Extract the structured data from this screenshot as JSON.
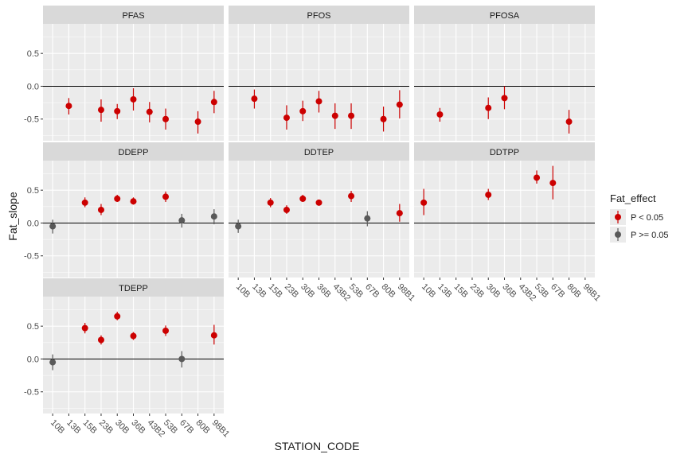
{
  "colors": {
    "panel_bg": "#ebebeb",
    "strip_bg": "#d9d9d9",
    "grid": "#ffffff",
    "sig": "#cc0000",
    "nonsig": "#595959",
    "text": "#4d4d4d",
    "title_text": "#1a1a1a",
    "zero_line": "#000000"
  },
  "chart_data": {
    "type": "scatter",
    "xlabel": "STATION_CODE",
    "ylabel": "Fat_slope",
    "ylim": [
      -0.83,
      0.95
    ],
    "yticks": [
      -0.5,
      0.0,
      0.5
    ],
    "ytick_labels": [
      "-0.5",
      "0.0",
      "0.5"
    ],
    "categories": [
      "10B",
      "13B",
      "15B",
      "23B",
      "30B",
      "36B",
      "43B2",
      "53B",
      "67B",
      "80B",
      "98B1"
    ],
    "legend": {
      "title": "Fat_effect",
      "position": "right",
      "entries": [
        {
          "label": "P < 0.05",
          "color": "#cc0000"
        },
        {
          "label": "P >= 0.05",
          "color": "#595959"
        }
      ]
    },
    "panels": [
      {
        "name": "PFAS",
        "points": [
          {
            "x": "13B",
            "y": -0.3,
            "lo": -0.43,
            "hi": -0.18,
            "sig": true
          },
          {
            "x": "23B",
            "y": -0.36,
            "lo": -0.54,
            "hi": -0.2,
            "sig": true
          },
          {
            "x": "30B",
            "y": -0.38,
            "lo": -0.5,
            "hi": -0.27,
            "sig": true
          },
          {
            "x": "36B",
            "y": -0.2,
            "lo": -0.37,
            "hi": -0.03,
            "sig": true
          },
          {
            "x": "43B2",
            "y": -0.39,
            "lo": -0.55,
            "hi": -0.24,
            "sig": true
          },
          {
            "x": "53B",
            "y": -0.5,
            "lo": -0.66,
            "hi": -0.34,
            "sig": true
          },
          {
            "x": "80B",
            "y": -0.54,
            "lo": -0.72,
            "hi": -0.38,
            "sig": true
          },
          {
            "x": "98B1",
            "y": -0.24,
            "lo": -0.41,
            "hi": -0.07,
            "sig": true
          }
        ]
      },
      {
        "name": "PFOS",
        "points": [
          {
            "x": "13B",
            "y": -0.19,
            "lo": -0.34,
            "hi": -0.05,
            "sig": true
          },
          {
            "x": "23B",
            "y": -0.48,
            "lo": -0.66,
            "hi": -0.29,
            "sig": true
          },
          {
            "x": "30B",
            "y": -0.38,
            "lo": -0.53,
            "hi": -0.22,
            "sig": true
          },
          {
            "x": "36B",
            "y": -0.23,
            "lo": -0.4,
            "hi": -0.07,
            "sig": true
          },
          {
            "x": "43B2",
            "y": -0.45,
            "lo": -0.65,
            "hi": -0.26,
            "sig": true
          },
          {
            "x": "53B",
            "y": -0.45,
            "lo": -0.65,
            "hi": -0.26,
            "sig": true
          },
          {
            "x": "80B",
            "y": -0.5,
            "lo": -0.69,
            "hi": -0.31,
            "sig": true
          },
          {
            "x": "98B1",
            "y": -0.28,
            "lo": -0.49,
            "hi": -0.06,
            "sig": true
          }
        ]
      },
      {
        "name": "PFOSA",
        "points": [
          {
            "x": "13B",
            "y": -0.43,
            "lo": -0.54,
            "hi": -0.33,
            "sig": true
          },
          {
            "x": "30B",
            "y": -0.33,
            "lo": -0.5,
            "hi": -0.17,
            "sig": true
          },
          {
            "x": "36B",
            "y": -0.18,
            "lo": -0.35,
            "hi": 0.0,
            "sig": true
          },
          {
            "x": "80B",
            "y": -0.54,
            "lo": -0.72,
            "hi": -0.36,
            "sig": true
          }
        ]
      },
      {
        "name": "DDEPP",
        "points": [
          {
            "x": "10B",
            "y": -0.05,
            "lo": -0.16,
            "hi": 0.05,
            "sig": false
          },
          {
            "x": "15B",
            "y": 0.31,
            "lo": 0.24,
            "hi": 0.39,
            "sig": true
          },
          {
            "x": "23B",
            "y": 0.2,
            "lo": 0.12,
            "hi": 0.29,
            "sig": true
          },
          {
            "x": "30B",
            "y": 0.37,
            "lo": 0.32,
            "hi": 0.43,
            "sig": true
          },
          {
            "x": "36B",
            "y": 0.33,
            "lo": 0.28,
            "hi": 0.39,
            "sig": true
          },
          {
            "x": "53B",
            "y": 0.4,
            "lo": 0.32,
            "hi": 0.48,
            "sig": true
          },
          {
            "x": "67B",
            "y": 0.04,
            "lo": -0.07,
            "hi": 0.14,
            "sig": false
          },
          {
            "x": "98B1",
            "y": 0.1,
            "lo": -0.02,
            "hi": 0.21,
            "sig": false
          }
        ]
      },
      {
        "name": "DDTEP",
        "points": [
          {
            "x": "10B",
            "y": -0.05,
            "lo": -0.15,
            "hi": 0.05,
            "sig": false
          },
          {
            "x": "15B",
            "y": 0.31,
            "lo": 0.24,
            "hi": 0.38,
            "sig": true
          },
          {
            "x": "23B",
            "y": 0.2,
            "lo": 0.14,
            "hi": 0.27,
            "sig": true
          },
          {
            "x": "30B",
            "y": 0.37,
            "lo": 0.32,
            "hi": 0.43,
            "sig": true
          },
          {
            "x": "36B",
            "y": 0.31,
            "lo": 0.27,
            "hi": 0.35,
            "sig": true
          },
          {
            "x": "53B",
            "y": 0.41,
            "lo": 0.32,
            "hi": 0.49,
            "sig": true
          },
          {
            "x": "67B",
            "y": 0.07,
            "lo": -0.05,
            "hi": 0.18,
            "sig": false
          },
          {
            "x": "98B1",
            "y": 0.15,
            "lo": 0.02,
            "hi": 0.29,
            "sig": true
          }
        ]
      },
      {
        "name": "DDTPP",
        "points": [
          {
            "x": "10B",
            "y": 0.31,
            "lo": 0.12,
            "hi": 0.52,
            "sig": true
          },
          {
            "x": "30B",
            "y": 0.43,
            "lo": 0.35,
            "hi": 0.52,
            "sig": true
          },
          {
            "x": "53B",
            "y": 0.69,
            "lo": 0.6,
            "hi": 0.8,
            "sig": true
          },
          {
            "x": "67B",
            "y": 0.61,
            "lo": 0.36,
            "hi": 0.87,
            "sig": true
          }
        ]
      },
      {
        "name": "TDEPP",
        "points": [
          {
            "x": "10B",
            "y": -0.05,
            "lo": -0.17,
            "hi": 0.07,
            "sig": false
          },
          {
            "x": "15B",
            "y": 0.47,
            "lo": 0.39,
            "hi": 0.55,
            "sig": true
          },
          {
            "x": "23B",
            "y": 0.29,
            "lo": 0.22,
            "hi": 0.36,
            "sig": true
          },
          {
            "x": "30B",
            "y": 0.65,
            "lo": 0.59,
            "hi": 0.72,
            "sig": true
          },
          {
            "x": "36B",
            "y": 0.35,
            "lo": 0.29,
            "hi": 0.41,
            "sig": true
          },
          {
            "x": "53B",
            "y": 0.43,
            "lo": 0.35,
            "hi": 0.51,
            "sig": true
          },
          {
            "x": "67B",
            "y": 0.0,
            "lo": -0.13,
            "hi": 0.12,
            "sig": false
          },
          {
            "x": "98B1",
            "y": 0.36,
            "lo": 0.22,
            "hi": 0.52,
            "sig": true
          }
        ]
      }
    ]
  }
}
